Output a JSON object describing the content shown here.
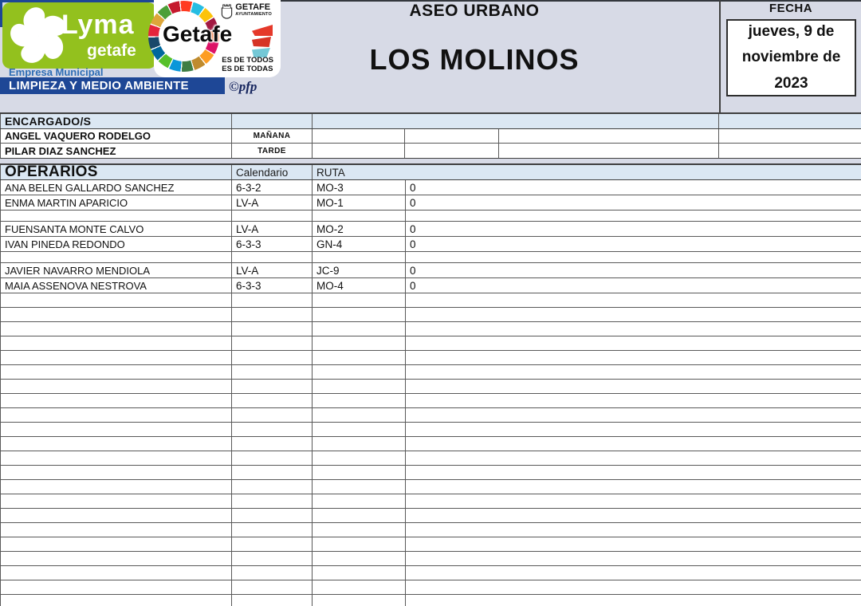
{
  "header": {
    "service_title": "ASEO URBANO",
    "zone_title": "LOS MOLINOS",
    "fecha_label": "FECHA",
    "date_text": "jueves, 9 de noviembre de 2023",
    "logo": {
      "lyma_title": "Lyma",
      "lyma_subtitle": "getafe",
      "empresa_line": "Empresa Municipal",
      "banner_line": "LIMPIEZA Y MEDIO AMBIENTE",
      "getafe_wordmark": "Getafe",
      "ayuntamiento_name": "GETAFE",
      "ayuntamiento_sub": "AYUNTAMIENTO",
      "tagline_line1": "ES DE TODOS",
      "tagline_line2": "ES DE TODAS",
      "credit": "©pfp"
    }
  },
  "encargados": {
    "section_label": "ENCARGADO/S",
    "rows": [
      {
        "name": "ANGEL VAQUERO RODELGO",
        "shift": "MAÑANA"
      },
      {
        "name": "PILAR DIAZ SANCHEZ",
        "shift": "TARDE"
      }
    ]
  },
  "operarios": {
    "section_label": "OPERARIOS",
    "columns": {
      "calendario": "Calendario",
      "ruta": "RUTA"
    },
    "rows": [
      {
        "name": "ANA BELEN GALLARDO SANCHEZ",
        "calendario": "6-3-2",
        "ruta": "MO-3",
        "obs": "0"
      },
      {
        "name": "ENMA MARTIN APARICIO",
        "calendario": "LV-A",
        "ruta": "MO-1",
        "obs": "0"
      },
      {
        "name": "",
        "calendario": "",
        "ruta": "",
        "obs": "",
        "separator": true
      },
      {
        "name": "FUENSANTA MONTE CALVO",
        "calendario": "LV-A",
        "ruta": "MO-2",
        "obs": "0"
      },
      {
        "name": "IVAN PINEDA REDONDO",
        "calendario": "6-3-3",
        "ruta": "GN-4",
        "obs": "0"
      },
      {
        "name": "",
        "calendario": "",
        "ruta": "",
        "obs": "",
        "separator": true
      },
      {
        "name": "JAVIER NAVARRO MENDIOLA",
        "calendario": "LV-A",
        "ruta": "JC-9",
        "obs": "0"
      },
      {
        "name": "MAIA ASSENOVA NESTROVA",
        "calendario": "6-3-3",
        "ruta": "MO-4",
        "obs": "0"
      }
    ],
    "empty_trailing_rows": 22
  },
  "colors": {
    "page_header_bg": "#d7dae6",
    "section_row_bg": "#dbe7f3",
    "table_border": "#3f3f3f",
    "row_border": "#595959",
    "lyma_green": "#93c11e",
    "brand_blue": "#1e4796",
    "empresa_text_blue": "#2e6db5",
    "credit_navy": "#16255e",
    "flag_red": "#e5392a",
    "flag_cyan": "#74c8d6",
    "sdg_palette": [
      "#e5243b",
      "#dda63a",
      "#4c9f38",
      "#c5192d",
      "#ff3a21",
      "#26bde2",
      "#fcc30b",
      "#a21942",
      "#fd6925",
      "#dd1367",
      "#fd9d24",
      "#bf8b2e",
      "#3f7e44",
      "#0a97d9",
      "#56c02b",
      "#00689d",
      "#19486a"
    ]
  }
}
